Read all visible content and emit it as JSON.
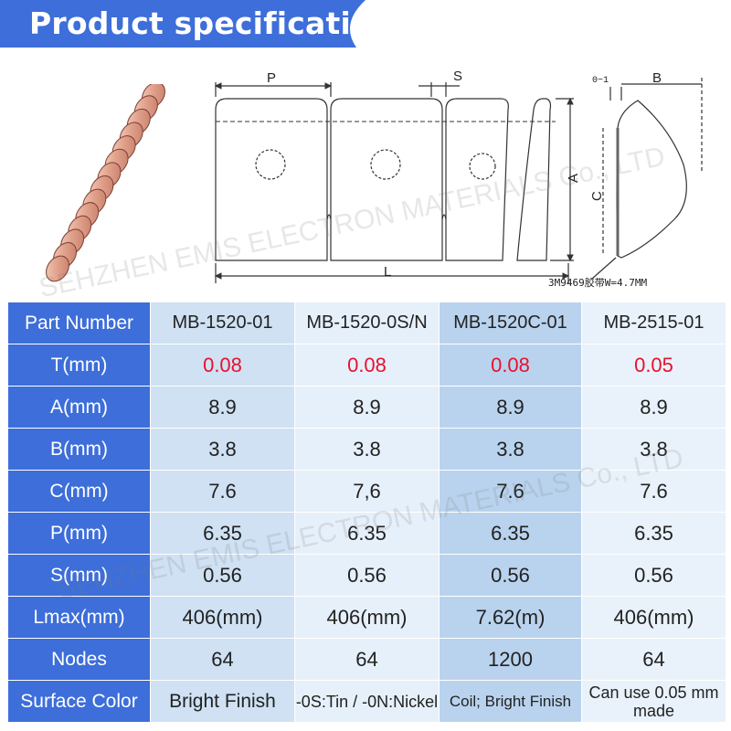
{
  "banner": {
    "title": "Product specifications",
    "color": "#3d6ed9"
  },
  "drawing": {
    "label_p": "P",
    "label_s": "S",
    "label_a": "A",
    "label_l": "L",
    "label_01": "0~1",
    "label_b": "B",
    "label_c": "C",
    "tape_note": "3M9469胶带W=4.7MM"
  },
  "watermark": "SEHZHEN EMIS ELECTRON MATERIALS Co., LTD",
  "table": {
    "header_color": "#3d6ed9",
    "highlight_color": "#e8112d",
    "rows": [
      {
        "label": "Part Number",
        "values": [
          "MB-1520-01",
          "MB-1520-0S/N",
          "MB-1520C-01",
          "MB-2515-01"
        ]
      },
      {
        "label": "T(mm)",
        "values": [
          "0.08",
          "0.08",
          "0.08",
          "0.05"
        ]
      },
      {
        "label": "A(mm)",
        "values": [
          "8.9",
          "8.9",
          "8.9",
          "8.9"
        ]
      },
      {
        "label": "B(mm)",
        "values": [
          "3.8",
          "3.8",
          "3.8",
          "3.8"
        ]
      },
      {
        "label": "C(mm)",
        "values": [
          "7.6",
          "7,6",
          "7.6",
          "7.6"
        ]
      },
      {
        "label": "P(mm)",
        "values": [
          "6.35",
          "6.35",
          "6.35",
          "6.35"
        ]
      },
      {
        "label": "S(mm)",
        "values": [
          "0.56",
          "0.56",
          "0.56",
          "0.56"
        ]
      },
      {
        "label": "Lmax(mm)",
        "values": [
          "406(mm)",
          "406(mm)",
          "7.62(m)",
          "406(mm)"
        ]
      },
      {
        "label": "Nodes",
        "values": [
          "64",
          "64",
          "1200",
          "64"
        ]
      },
      {
        "label": "Surface Color",
        "values": [
          "Bright Finish",
          "-0S:Tin / -0N:Nickel",
          "Coil; Bright Finish",
          "Can use 0.05 mm made"
        ]
      }
    ]
  }
}
